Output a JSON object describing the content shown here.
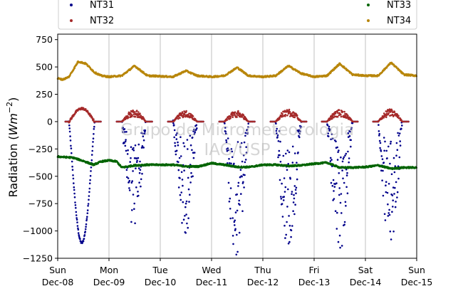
{
  "chart_data": {
    "type": "scatter",
    "ylabel": "Radiation (Wm^-2)",
    "ylabel_prefix": "Radiation (",
    "ylabel_var": "Wm",
    "ylabel_exp": "−2",
    "ylabel_suffix": ")",
    "ylim": [
      -1250,
      800
    ],
    "yticks": [
      750,
      500,
      250,
      0,
      -250,
      -500,
      -750,
      -1000,
      -1250
    ],
    "ytick_labels": [
      "750",
      "500",
      "250",
      "0",
      "−250",
      "−500",
      "−750",
      "−1000",
      "−1250"
    ],
    "xlim": [
      0,
      7
    ],
    "xticks": [
      {
        "x": 0,
        "day": "Sun",
        "date": "Dec-08"
      },
      {
        "x": 1,
        "day": "Mon",
        "date": "Dec-09"
      },
      {
        "x": 2,
        "day": "Tue",
        "date": "Dec-10"
      },
      {
        "x": 3,
        "day": "Wed",
        "date": "Dec-11"
      },
      {
        "x": 4,
        "day": "Thu",
        "date": "Dec-12"
      },
      {
        "x": 5,
        "day": "Fri",
        "date": "Dec-13"
      },
      {
        "x": 6,
        "day": "Sat",
        "date": "Dec-14"
      },
      {
        "x": 7,
        "day": "Sun",
        "date": "Dec-15"
      }
    ],
    "grid": "vertical",
    "legend_position": "top",
    "watermark": [
      "Grupo de Micrometeorologia",
      "IAG/USP"
    ],
    "series": [
      {
        "name": "NT31",
        "color": "#00008b",
        "baseline": 0,
        "days": [
          {
            "day": 0,
            "start": 0.22,
            "end": 0.72,
            "peak": -1110,
            "scatter": 0.05
          },
          {
            "day": 1,
            "start": 0.25,
            "end": 0.72,
            "peak": -1000,
            "scatter": 0.85
          },
          {
            "day": 2,
            "start": 0.25,
            "end": 0.72,
            "peak": -990,
            "scatter": 0.9
          },
          {
            "day": 3,
            "start": 0.25,
            "end": 0.72,
            "peak": -1200,
            "scatter": 0.9
          },
          {
            "day": 4,
            "start": 0.25,
            "end": 0.75,
            "peak": -1180,
            "scatter": 0.85
          },
          {
            "day": 5,
            "start": 0.25,
            "end": 0.75,
            "peak": -1200,
            "scatter": 0.85
          },
          {
            "day": 6,
            "start": 0.25,
            "end": 0.72,
            "peak": -1180,
            "scatter": 0.85
          }
        ]
      },
      {
        "name": "NT32",
        "color": "#a52a2a",
        "baseline": 0,
        "days": [
          {
            "day": 0,
            "start": 0.22,
            "end": 0.72,
            "peak": 120,
            "scatter": 0.05
          },
          {
            "day": 1,
            "start": 0.25,
            "end": 0.72,
            "peak": 110,
            "scatter": 0.5
          },
          {
            "day": 2,
            "start": 0.25,
            "end": 0.72,
            "peak": 100,
            "scatter": 0.5
          },
          {
            "day": 3,
            "start": 0.25,
            "end": 0.72,
            "peak": 100,
            "scatter": 0.5
          },
          {
            "day": 4,
            "start": 0.25,
            "end": 0.75,
            "peak": 120,
            "scatter": 0.5
          },
          {
            "day": 5,
            "start": 0.25,
            "end": 0.75,
            "peak": 110,
            "scatter": 0.5
          },
          {
            "day": 6,
            "start": 0.25,
            "end": 0.72,
            "peak": 115,
            "scatter": 0.5
          }
        ]
      },
      {
        "name": "NT33",
        "color": "#006400",
        "x": [
          0,
          0.3,
          0.5,
          0.7,
          0.85,
          1.0,
          1.15,
          1.25,
          1.5,
          1.75,
          2.0,
          2.25,
          2.5,
          2.75,
          3.0,
          3.25,
          3.5,
          3.75,
          4.0,
          4.25,
          4.5,
          4.75,
          5.0,
          5.25,
          5.5,
          5.75,
          6.0,
          6.25,
          6.5,
          6.75,
          7.0
        ],
        "y": [
          -320,
          -330,
          -360,
          -395,
          -365,
          -355,
          -365,
          -420,
          -400,
          -395,
          -395,
          -395,
          -410,
          -410,
          -380,
          -395,
          -415,
          -415,
          -395,
          -395,
          -405,
          -400,
          -385,
          -375,
          -420,
          -420,
          -415,
          -400,
          -430,
          -420,
          -420
        ]
      },
      {
        "name": "NT34",
        "color": "#b8860b",
        "x": [
          0,
          0.1,
          0.22,
          0.4,
          0.55,
          0.72,
          0.85,
          1.0,
          1.25,
          1.5,
          1.75,
          2.0,
          2.25,
          2.5,
          2.72,
          3.0,
          3.25,
          3.5,
          3.72,
          4.0,
          4.25,
          4.5,
          4.75,
          5.0,
          5.25,
          5.5,
          5.75,
          6.0,
          6.25,
          6.5,
          6.75,
          7.0
        ],
        "y": [
          395,
          385,
          410,
          550,
          530,
          450,
          420,
          410,
          420,
          510,
          420,
          415,
          410,
          465,
          420,
          410,
          420,
          495,
          420,
          410,
          420,
          510,
          440,
          410,
          420,
          530,
          430,
          420,
          420,
          540,
          430,
          420
        ]
      }
    ]
  }
}
